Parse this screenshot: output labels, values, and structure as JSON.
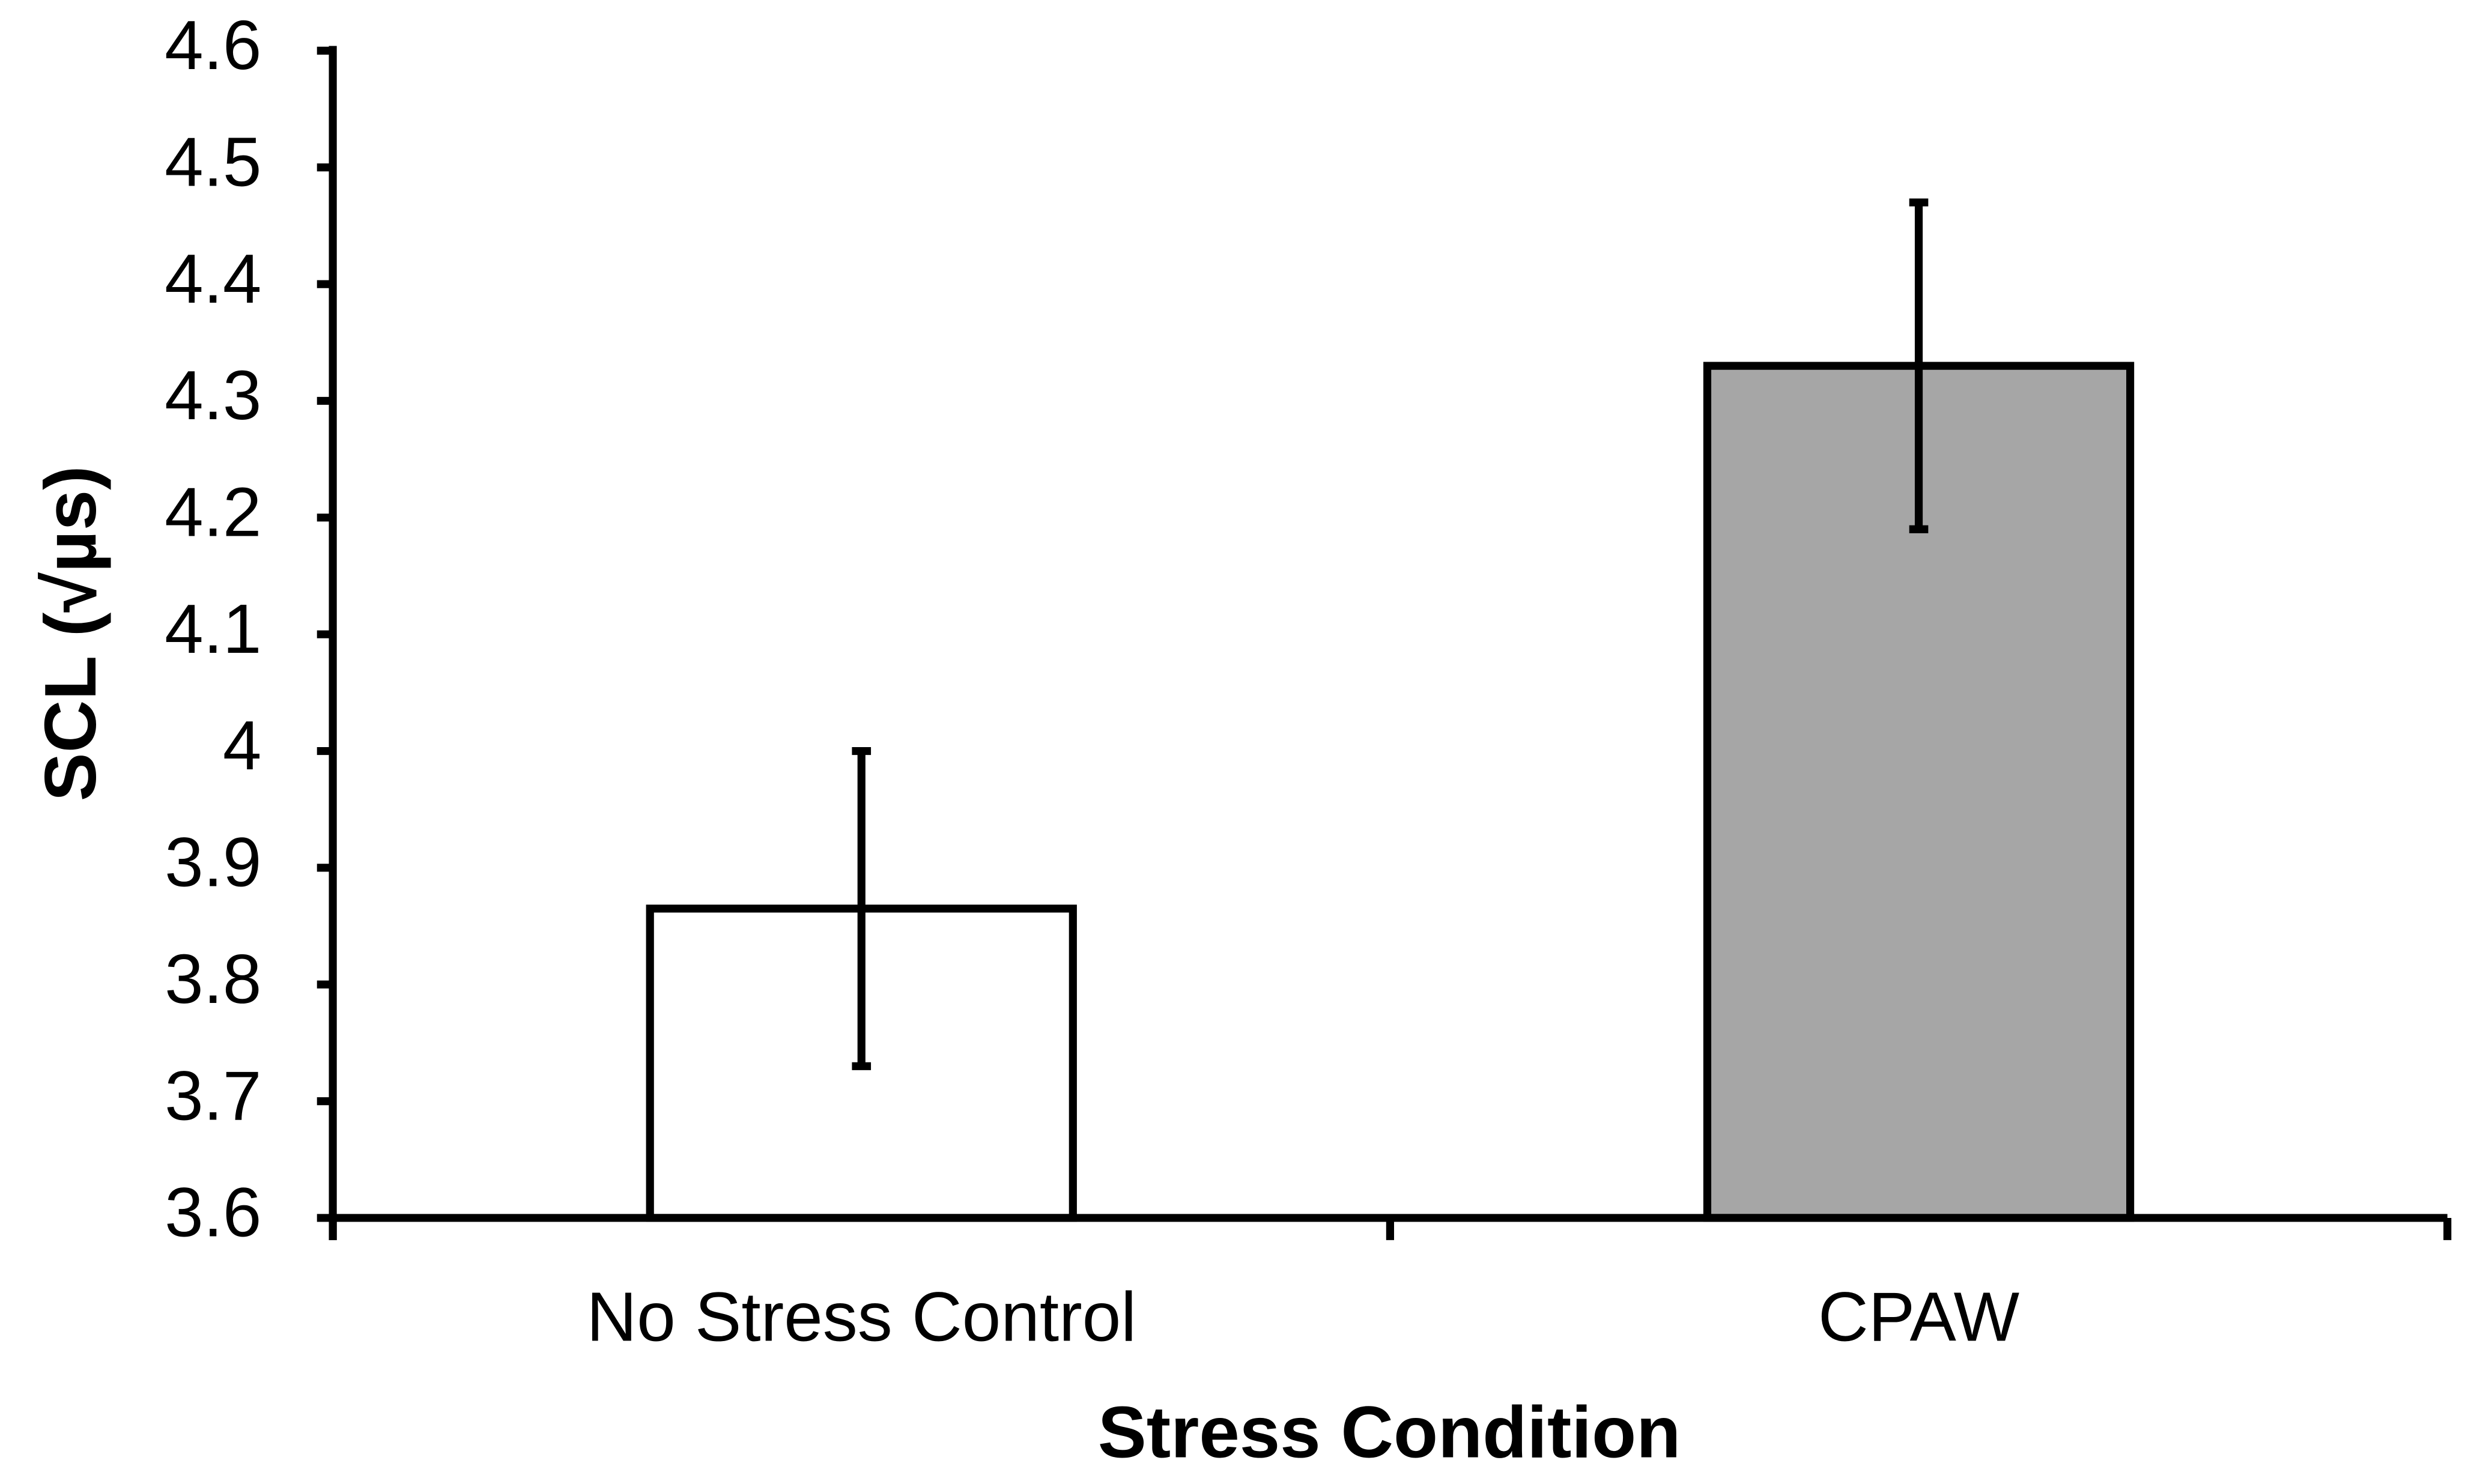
{
  "chart_data": {
    "type": "bar",
    "x_label": "Stress Condition",
    "y_label": "SCL (√µs)",
    "categories": [
      "No Stress Control",
      "CPAW"
    ],
    "values": [
      3.865,
      4.33
    ],
    "errors": [
      0.135,
      0.14
    ],
    "colors": [
      "#ffffff",
      "#a6a6a6"
    ],
    "ylim": [
      3.6,
      4.6
    ],
    "yticks": [
      3.6,
      3.7,
      3.8,
      3.9,
      4,
      4.1,
      4.2,
      4.3,
      4.4,
      4.5,
      4.6
    ],
    "grid": false
  }
}
